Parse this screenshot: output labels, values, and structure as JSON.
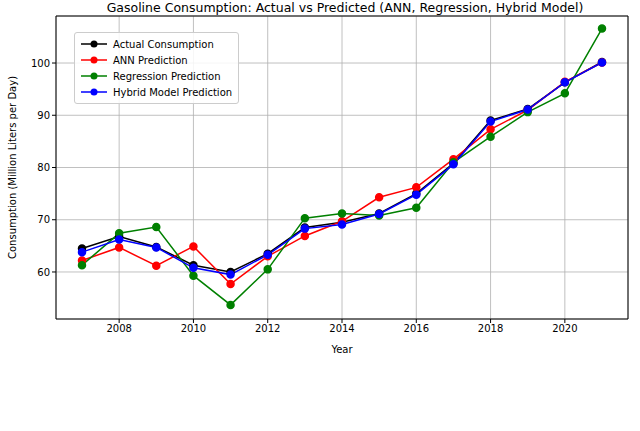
{
  "chart_data": {
    "type": "line",
    "title": "Gasoline Consumption: Actual vs Predicted (ANN, Regression, Hybrid Model)",
    "x_label": "Year",
    "y_label": "Consumption (Million Liters per Day)",
    "x": [
      2007,
      2008,
      2009,
      2010,
      2011,
      2012,
      2013,
      2014,
      2015,
      2016,
      2017,
      2018,
      2019,
      2020,
      2021
    ],
    "series": [
      {
        "name": "Actual Consumption",
        "color": "#000000",
        "marker": "circle",
        "values": [
          64.5,
          66.8,
          64.8,
          61.3,
          60.0,
          63.5,
          68.5,
          69.5,
          71.2,
          75.0,
          80.8,
          89.0,
          91.2,
          96.3,
          100.2
        ]
      },
      {
        "name": "ANN Prediction",
        "color": "#ff0000",
        "marker": "circle",
        "values": [
          62.2,
          64.7,
          61.2,
          64.9,
          57.7,
          63.0,
          66.9,
          69.7,
          74.3,
          76.2,
          81.6,
          87.3,
          91.0,
          96.4,
          100.1
        ]
      },
      {
        "name": "Regression Prediction",
        "color": "#008000",
        "marker": "circle",
        "values": [
          61.3,
          67.4,
          68.6,
          59.3,
          53.7,
          60.5,
          70.3,
          71.2,
          70.8,
          72.3,
          81.0,
          85.9,
          90.6,
          94.2,
          106.6
        ]
      },
      {
        "name": "Hybrid Model Prediction",
        "color": "#0000ff",
        "marker": "circle",
        "values": [
          63.8,
          66.2,
          64.7,
          60.8,
          59.5,
          63.3,
          68.3,
          69.1,
          71.1,
          74.8,
          80.6,
          88.8,
          91.1,
          96.3,
          100.1
        ]
      }
    ],
    "xlim": [
      2006.3,
      2021.7
    ],
    "xticks": [
      2008,
      2010,
      2012,
      2014,
      2016,
      2018,
      2020
    ],
    "ylim": [
      51,
      109
    ],
    "yticks": [
      60,
      70,
      80,
      90,
      100
    ],
    "grid": true,
    "legend": "upper left"
  }
}
